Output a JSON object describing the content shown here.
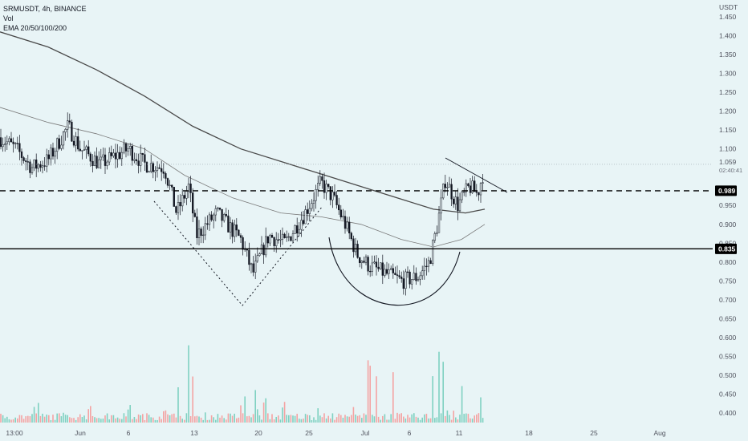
{
  "legend": {
    "symbol": "SRMUSDT, 4h, BINANCE",
    "volume": "Vol",
    "ema": "EMA 20/50/100/200"
  },
  "axis": {
    "currency": "USDT",
    "price_ticks": [
      "1.450",
      "1.400",
      "1.350",
      "1.300",
      "1.250",
      "1.200",
      "1.150",
      "1.100",
      "1.050",
      "1.000",
      "0.950",
      "0.900",
      "0.850",
      "0.800",
      "0.750",
      "0.700",
      "0.650",
      "0.600",
      "0.550",
      "0.500",
      "0.450",
      "0.400"
    ],
    "time_ticks": [
      "13:00",
      "Jun",
      "6",
      "13",
      "20",
      "25",
      "Jul",
      "6",
      "11",
      "18",
      "25",
      "Aug"
    ]
  },
  "levels": {
    "resistance": "0.989",
    "support": "0.835",
    "last_price": "1.059",
    "countdown": "02:40:41"
  },
  "colors": {
    "background": "#e8f4f6",
    "candle": "#131722",
    "ema_200": "#4a4a4a",
    "ema_100": "#7a7a7a",
    "volume_up": "#7fd1c1",
    "volume_down": "#f4a3a3",
    "level_line": "#000000"
  },
  "chart_data": {
    "type": "candlestick",
    "y_axis": "price (USDT)",
    "ylim": [
      0.4,
      1.45
    ],
    "grid": false,
    "series": [
      {
        "name": "price",
        "points": [
          [
            "13:00",
            1.12
          ],
          [
            "Jun",
            1.07
          ],
          [
            "6",
            1.12
          ],
          [
            "13",
            0.89
          ],
          [
            "20",
            0.79
          ],
          [
            "25",
            0.98
          ],
          [
            "Jul",
            0.85
          ],
          [
            "6",
            0.76
          ],
          [
            "11",
            0.98
          ],
          [
            "13",
            1.059
          ]
        ]
      },
      {
        "name": "EMA 200",
        "points": [
          [
            "13:00",
            1.41
          ],
          [
            "Jun",
            1.34
          ],
          [
            "13",
            1.17
          ],
          [
            "25",
            1.05
          ],
          [
            "Jul",
            1.0
          ],
          [
            "6",
            0.94
          ],
          [
            "11",
            0.93
          ],
          [
            "13",
            0.94
          ]
        ]
      },
      {
        "name": "EMA 100",
        "points": [
          [
            "13:00",
            1.21
          ],
          [
            "Jun",
            1.15
          ],
          [
            "13",
            1.04
          ],
          [
            "20",
            0.95
          ],
          [
            "25",
            0.92
          ],
          [
            "Jul",
            0.9
          ],
          [
            "6",
            0.86
          ],
          [
            "11",
            0.87
          ],
          [
            "13",
            0.9
          ]
        ]
      }
    ]
  }
}
